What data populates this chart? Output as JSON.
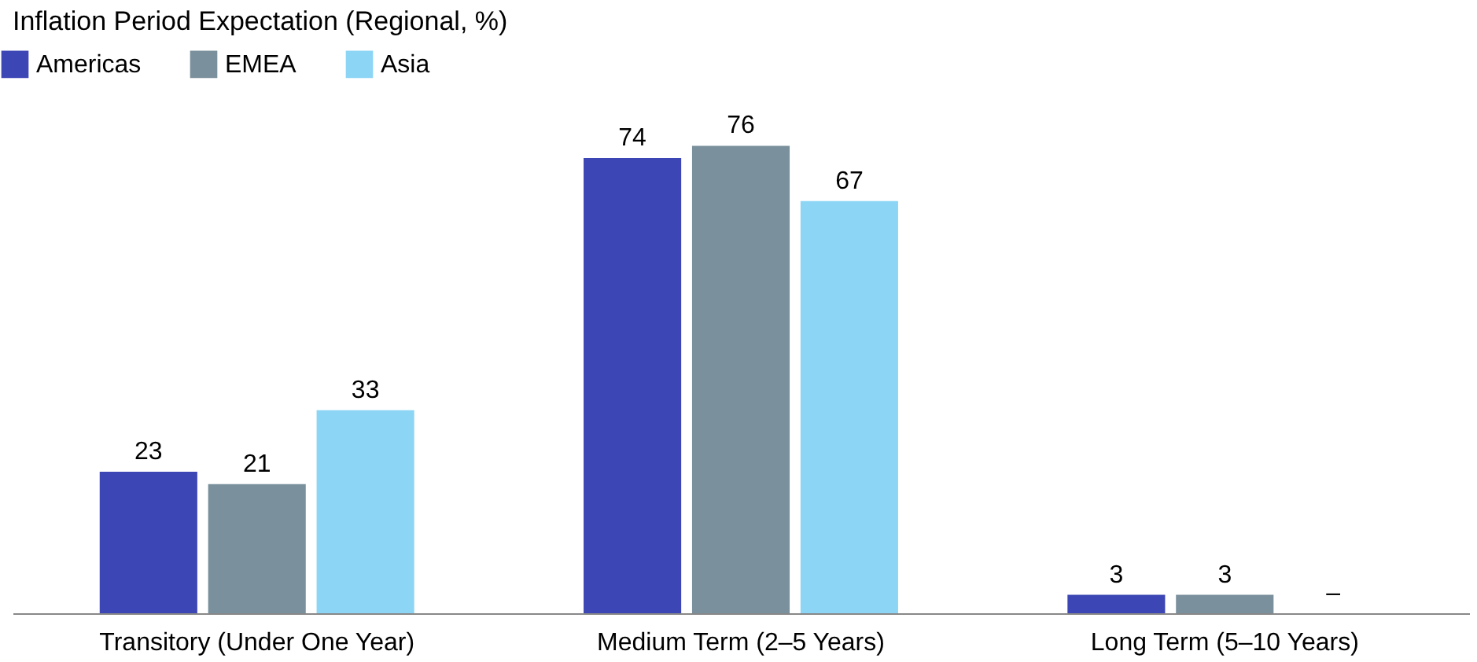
{
  "chart_data": {
    "type": "bar",
    "title": "Inflation Period Expectation (Regional, %)",
    "categories": [
      "Transitory (Under One Year)",
      "Medium Term (2–5 Years)",
      "Long Term (5–10 Years)"
    ],
    "series": [
      {
        "name": "Americas",
        "color": "#3c46b4",
        "values": [
          23,
          74,
          3
        ],
        "value_labels": [
          "23",
          "74",
          "3"
        ]
      },
      {
        "name": "EMEA",
        "color": "#7a909c",
        "values": [
          21,
          76,
          3
        ],
        "value_labels": [
          "21",
          "76",
          "3"
        ]
      },
      {
        "name": "Asia",
        "color": "#8dd5f5",
        "values": [
          33,
          67,
          null
        ],
        "value_labels": [
          "33",
          "67",
          "–"
        ]
      }
    ],
    "legend": "top left"
  }
}
